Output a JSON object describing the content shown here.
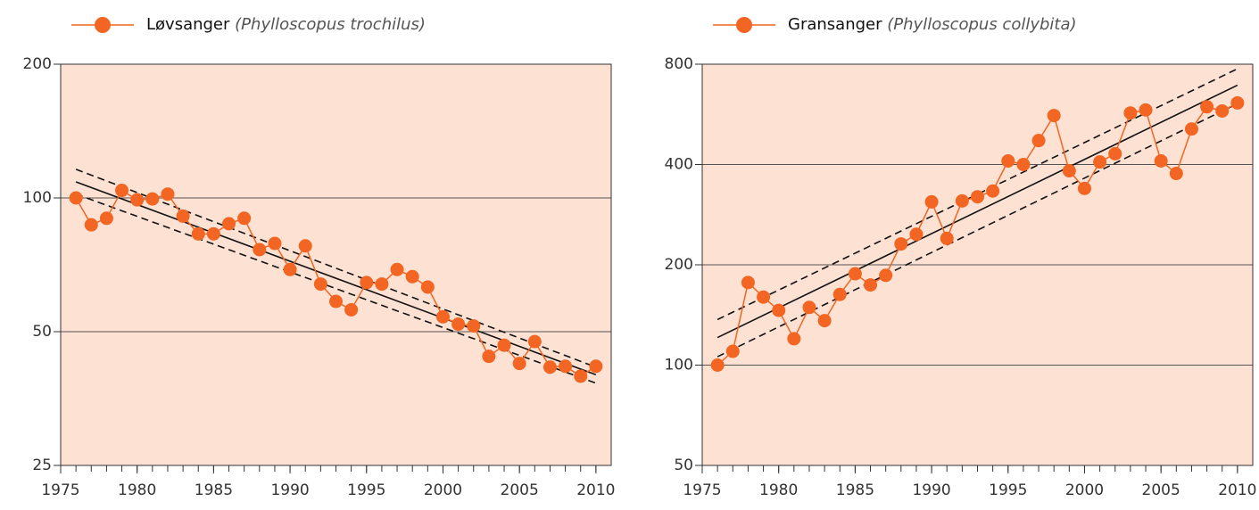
{
  "chart_data": [
    {
      "type": "line",
      "log_y": true,
      "grid": true,
      "legend": "top-left",
      "series": [
        {
          "name": "Løvsanger",
          "latin": "(Phylloscopus trochilus)",
          "color": "#f26522",
          "values": [
            100,
            87,
            90,
            104,
            99,
            99.5,
            102,
            91,
            83,
            83,
            87.5,
            90,
            76.5,
            79,
            69,
            78,
            64,
            58.5,
            56,
            64.5,
            64,
            69,
            66.5,
            63,
            54,
            52,
            51.5,
            44,
            46.6,
            42.4,
            47.5,
            41.6,
            41.8,
            39.7,
            41.8
          ]
        }
      ],
      "x": [
        1976,
        1977,
        1978,
        1979,
        1980,
        1981,
        1982,
        1983,
        1984,
        1985,
        1986,
        1987,
        1988,
        1989,
        1990,
        1991,
        1992,
        1993,
        1994,
        1995,
        1996,
        1997,
        1998,
        1999,
        2000,
        2001,
        2002,
        2003,
        2004,
        2005,
        2006,
        2007,
        2008,
        2009,
        2010
      ],
      "trend": {
        "x": [
          1976,
          2010
        ],
        "fit": [
          108.7,
          40
        ],
        "upper": [
          116,
          41.6
        ],
        "lower": [
          102,
          38.3
        ]
      },
      "xlim": [
        1975,
        2011
      ],
      "xticks": [
        1975,
        1980,
        1985,
        1990,
        1995,
        2000,
        2005,
        2010
      ],
      "ylim": [
        25,
        200
      ],
      "yticks": [
        25,
        50,
        100,
        200
      ]
    },
    {
      "type": "line",
      "log_y": true,
      "grid": true,
      "legend": "top-left",
      "series": [
        {
          "name": "Gransanger",
          "latin": "(Phylloscopus collybita)",
          "color": "#f26522",
          "values": [
            100,
            110,
            177,
            160,
            146,
            120,
            149,
            136,
            163,
            188,
            174,
            186,
            231,
            247,
            309,
            240,
            311,
            320,
            333,
            410,
            400,
            472,
            561,
            383,
            339,
            407,
            431,
            571,
            583,
            410,
            376,
            511,
            596,
            579,
            612
          ]
        }
      ],
      "x": [
        1976,
        1977,
        1978,
        1979,
        1980,
        1981,
        1982,
        1983,
        1984,
        1985,
        1986,
        1987,
        1988,
        1989,
        1990,
        1991,
        1992,
        1993,
        1994,
        1995,
        1996,
        1997,
        1998,
        1999,
        2000,
        2001,
        2002,
        2003,
        2004,
        2005,
        2006,
        2007,
        2008,
        2009,
        2010
      ],
      "trend": {
        "x": [
          1976,
          2010
        ],
        "fit": [
          121,
          692
        ],
        "upper": [
          137,
          775
        ],
        "lower": [
          106,
          609
        ]
      },
      "xlim": [
        1975,
        2011
      ],
      "xticks": [
        1975,
        1980,
        1985,
        1990,
        1995,
        2000,
        2005,
        2010
      ],
      "ylim": [
        50,
        800
      ],
      "yticks": [
        50,
        100,
        200,
        400,
        800
      ]
    }
  ]
}
